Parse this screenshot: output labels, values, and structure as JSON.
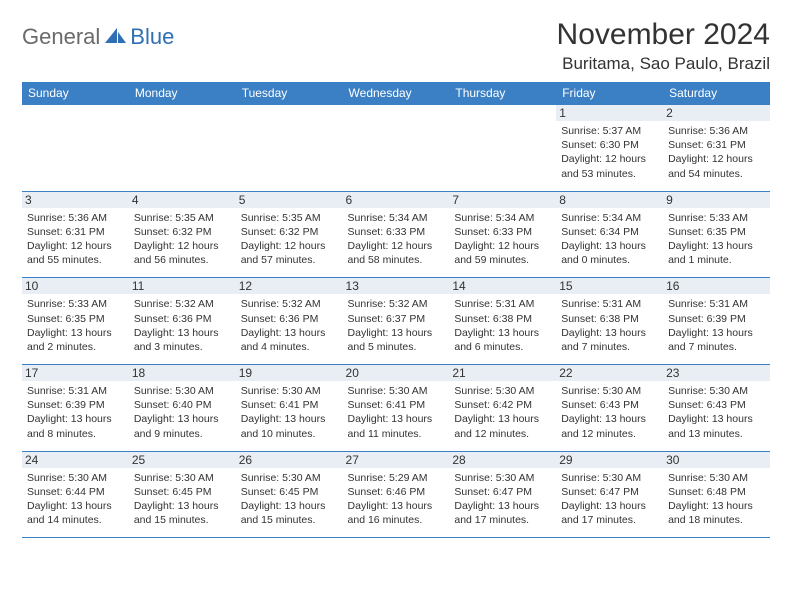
{
  "logo": {
    "text1": "General",
    "text2": "Blue"
  },
  "title": "November 2024",
  "location": "Buritama, Sao Paulo, Brazil",
  "colors": {
    "header_bg": "#3b7fc4",
    "header_text": "#ffffff",
    "border": "#3b7fc4",
    "daynum_bg": "#e9eef4",
    "text": "#333333",
    "logo_gray": "#6a6a6a",
    "logo_blue": "#2f6fb3",
    "background": "#ffffff"
  },
  "day_names": [
    "Sunday",
    "Monday",
    "Tuesday",
    "Wednesday",
    "Thursday",
    "Friday",
    "Saturday"
  ],
  "weeks": [
    [
      null,
      null,
      null,
      null,
      null,
      {
        "n": "1",
        "sr": "5:37 AM",
        "ss": "6:30 PM",
        "dl": "12 hours and 53 minutes."
      },
      {
        "n": "2",
        "sr": "5:36 AM",
        "ss": "6:31 PM",
        "dl": "12 hours and 54 minutes."
      }
    ],
    [
      {
        "n": "3",
        "sr": "5:36 AM",
        "ss": "6:31 PM",
        "dl": "12 hours and 55 minutes."
      },
      {
        "n": "4",
        "sr": "5:35 AM",
        "ss": "6:32 PM",
        "dl": "12 hours and 56 minutes."
      },
      {
        "n": "5",
        "sr": "5:35 AM",
        "ss": "6:32 PM",
        "dl": "12 hours and 57 minutes."
      },
      {
        "n": "6",
        "sr": "5:34 AM",
        "ss": "6:33 PM",
        "dl": "12 hours and 58 minutes."
      },
      {
        "n": "7",
        "sr": "5:34 AM",
        "ss": "6:33 PM",
        "dl": "12 hours and 59 minutes."
      },
      {
        "n": "8",
        "sr": "5:34 AM",
        "ss": "6:34 PM",
        "dl": "13 hours and 0 minutes."
      },
      {
        "n": "9",
        "sr": "5:33 AM",
        "ss": "6:35 PM",
        "dl": "13 hours and 1 minute."
      }
    ],
    [
      {
        "n": "10",
        "sr": "5:33 AM",
        "ss": "6:35 PM",
        "dl": "13 hours and 2 minutes."
      },
      {
        "n": "11",
        "sr": "5:32 AM",
        "ss": "6:36 PM",
        "dl": "13 hours and 3 minutes."
      },
      {
        "n": "12",
        "sr": "5:32 AM",
        "ss": "6:36 PM",
        "dl": "13 hours and 4 minutes."
      },
      {
        "n": "13",
        "sr": "5:32 AM",
        "ss": "6:37 PM",
        "dl": "13 hours and 5 minutes."
      },
      {
        "n": "14",
        "sr": "5:31 AM",
        "ss": "6:38 PM",
        "dl": "13 hours and 6 minutes."
      },
      {
        "n": "15",
        "sr": "5:31 AM",
        "ss": "6:38 PM",
        "dl": "13 hours and 7 minutes."
      },
      {
        "n": "16",
        "sr": "5:31 AM",
        "ss": "6:39 PM",
        "dl": "13 hours and 7 minutes."
      }
    ],
    [
      {
        "n": "17",
        "sr": "5:31 AM",
        "ss": "6:39 PM",
        "dl": "13 hours and 8 minutes."
      },
      {
        "n": "18",
        "sr": "5:30 AM",
        "ss": "6:40 PM",
        "dl": "13 hours and 9 minutes."
      },
      {
        "n": "19",
        "sr": "5:30 AM",
        "ss": "6:41 PM",
        "dl": "13 hours and 10 minutes."
      },
      {
        "n": "20",
        "sr": "5:30 AM",
        "ss": "6:41 PM",
        "dl": "13 hours and 11 minutes."
      },
      {
        "n": "21",
        "sr": "5:30 AM",
        "ss": "6:42 PM",
        "dl": "13 hours and 12 minutes."
      },
      {
        "n": "22",
        "sr": "5:30 AM",
        "ss": "6:43 PM",
        "dl": "13 hours and 12 minutes."
      },
      {
        "n": "23",
        "sr": "5:30 AM",
        "ss": "6:43 PM",
        "dl": "13 hours and 13 minutes."
      }
    ],
    [
      {
        "n": "24",
        "sr": "5:30 AM",
        "ss": "6:44 PM",
        "dl": "13 hours and 14 minutes."
      },
      {
        "n": "25",
        "sr": "5:30 AM",
        "ss": "6:45 PM",
        "dl": "13 hours and 15 minutes."
      },
      {
        "n": "26",
        "sr": "5:30 AM",
        "ss": "6:45 PM",
        "dl": "13 hours and 15 minutes."
      },
      {
        "n": "27",
        "sr": "5:29 AM",
        "ss": "6:46 PM",
        "dl": "13 hours and 16 minutes."
      },
      {
        "n": "28",
        "sr": "5:30 AM",
        "ss": "6:47 PM",
        "dl": "13 hours and 17 minutes."
      },
      {
        "n": "29",
        "sr": "5:30 AM",
        "ss": "6:47 PM",
        "dl": "13 hours and 17 minutes."
      },
      {
        "n": "30",
        "sr": "5:30 AM",
        "ss": "6:48 PM",
        "dl": "13 hours and 18 minutes."
      }
    ]
  ],
  "labels": {
    "sunrise": "Sunrise:",
    "sunset": "Sunset:",
    "daylight": "Daylight:"
  }
}
